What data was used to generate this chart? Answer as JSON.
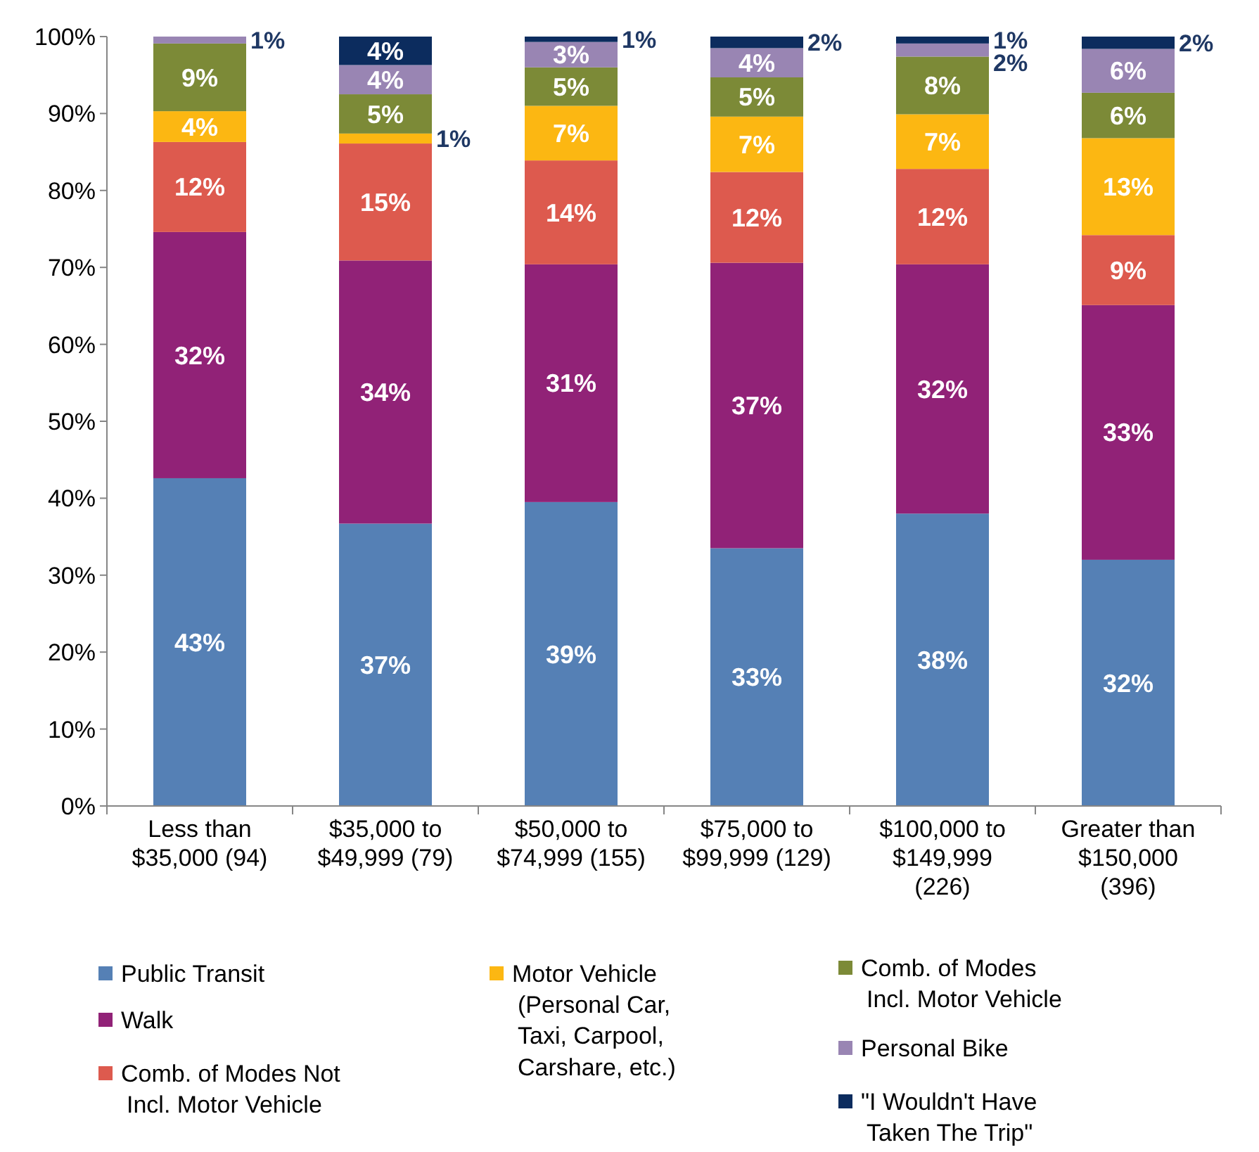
{
  "chart_data": {
    "type": "bar",
    "stacked": true,
    "legend": "bottom",
    "grid": false,
    "categories": [
      "Less than\n$35,000 (94)",
      "$35,000 to\n$49,999 (79)",
      "$50,000 to\n$74,999 (155)",
      "$75,000 to\n$99,999 (129)",
      "$100,000 to\n$149,999\n(226)",
      "Greater than\n$150,000\n(396)"
    ],
    "ylim": [
      0,
      100
    ],
    "yticks": [
      {
        "value": 0,
        "label": "0%"
      },
      {
        "value": 10,
        "label": "10%"
      },
      {
        "value": 20,
        "label": "20%"
      },
      {
        "value": 30,
        "label": "30%"
      },
      {
        "value": 40,
        "label": "40%"
      },
      {
        "value": 50,
        "label": "50%"
      },
      {
        "value": 60,
        "label": "60%"
      },
      {
        "value": 70,
        "label": "70%"
      },
      {
        "value": 80,
        "label": "80%"
      },
      {
        "value": 90,
        "label": "90%"
      },
      {
        "value": 100,
        "label": "100%"
      }
    ],
    "series": [
      {
        "name": "Public Transit",
        "color": "#5580b5",
        "values": [
          42.6,
          36.7,
          39.5,
          33.5,
          38.0,
          32.0
        ],
        "value_labels": [
          "43%",
          "37%",
          "39%",
          "33%",
          "38%",
          "32%"
        ]
      },
      {
        "name": "Walk",
        "color": "#912277",
        "values": [
          32.0,
          34.2,
          30.9,
          37.1,
          32.4,
          33.1
        ],
        "value_labels": [
          "32%",
          "34%",
          "31%",
          "37%",
          "32%",
          "33%"
        ]
      },
      {
        "name": "Comb. of Modes Not\nIncl.  Motor Vehicle",
        "color": "#dd5a4e",
        "values": [
          11.7,
          15.2,
          13.5,
          11.8,
          12.4,
          9.1
        ],
        "value_labels": [
          "12%",
          "15%",
          "14%",
          "12%",
          "12%",
          "9%"
        ]
      },
      {
        "name": "Motor Vehicle\n(Personal Car,\nTaxi, Carpool,\nCarshare, etc.)",
        "color": "#fcb712",
        "values": [
          4.0,
          1.3,
          7.1,
          7.2,
          7.1,
          12.6
        ],
        "value_labels": [
          "4%",
          "1%",
          "7%",
          "7%",
          "7%",
          "13%"
        ]
      },
      {
        "name": "Comb. of Modes\nIncl. Motor Vehicle",
        "color": "#7c8a37",
        "values": [
          8.8,
          5.1,
          5.0,
          5.1,
          7.5,
          5.9
        ],
        "value_labels": [
          "9%",
          "5%",
          "5%",
          "5%",
          "8%",
          "6%"
        ]
      },
      {
        "name": "Personal Bike",
        "color": "#9985b3",
        "values": [
          0.9,
          3.8,
          3.3,
          3.8,
          1.7,
          5.7
        ],
        "value_labels": [
          "1%",
          "4%",
          "3%",
          "4%",
          "2%",
          "6%"
        ]
      },
      {
        "name": "\"I Wouldn't Have\nTaken The Trip\"",
        "color": "#0c2c5e",
        "values": [
          null,
          3.7,
          0.7,
          1.5,
          0.9,
          1.6
        ],
        "value_labels": [
          null,
          "4%",
          "1%",
          "2%",
          "1%",
          "2%"
        ]
      }
    ]
  }
}
